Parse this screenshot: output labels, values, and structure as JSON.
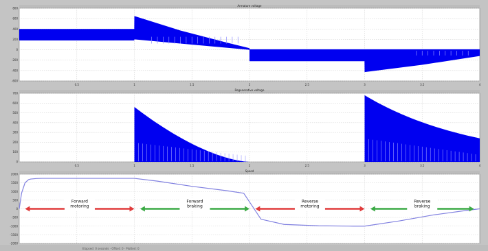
{
  "chart_data": [
    {
      "type": "line",
      "title": "Armature voltage",
      "xlim": [
        0,
        4
      ],
      "ylim": [
        -600,
        800
      ],
      "x_ticks": [
        "0.5",
        "1",
        "1.5",
        "2",
        "2.5",
        "3",
        "3.5",
        "4"
      ],
      "y_ticks": [
        "800",
        "600",
        "400",
        "200",
        "0",
        "-200",
        "-400",
        "-600"
      ],
      "series": [
        {
          "style": "pwm-envelope",
          "upper": [
            [
              0,
              400
            ],
            [
              0.999,
              400
            ],
            [
              1.0,
              650
            ],
            [
              1.4,
              370
            ],
            [
              1.8,
              140
            ],
            [
              2.0,
              30
            ]
          ],
          "lower": [
            [
              0,
              180
            ],
            [
              0.999,
              180
            ],
            [
              1.0,
              200
            ],
            [
              1.999,
              0
            ],
            [
              2.0,
              -10
            ],
            [
              2.999,
              -10
            ],
            [
              3.0,
              -200
            ],
            [
              3.5,
              -130
            ],
            [
              4.0,
              -50
            ]
          ],
          "upper2": [
            [
              2.0,
              10
            ],
            [
              3.999,
              10
            ],
            [
              4.0,
              10
            ]
          ],
          "lower2": [
            [
              2.0,
              -220
            ],
            [
              2.999,
              -220
            ],
            [
              3.0,
              -430
            ],
            [
              3.5,
              -290
            ],
            [
              4.0,
              -120
            ]
          ]
        }
      ]
    },
    {
      "type": "line",
      "title": "Regenerative voltage",
      "xlim": [
        0,
        4
      ],
      "ylim": [
        0,
        700
      ],
      "x_ticks": [
        "0.5",
        "1",
        "1.5",
        "2",
        "2.5",
        "3",
        "3.5",
        "4"
      ],
      "y_ticks": [
        "700",
        "600",
        "500",
        "400",
        "300",
        "200",
        "100",
        "0"
      ],
      "series": [
        {
          "style": "pwm-decay",
          "segments": [
            {
              "x0": 1.0,
              "x1": 2.0,
              "peak": 560
            },
            {
              "x0": 3.0,
              "x1": 4.0,
              "peak": 680,
              "end": 240
            }
          ]
        }
      ]
    },
    {
      "type": "line",
      "title": "Speed",
      "xlim": [
        0,
        4
      ],
      "ylim": [
        -2000,
        2000
      ],
      "y_ticks": [
        "2000",
        "1500",
        "1000",
        "500",
        "0",
        "-500",
        "-1000",
        "-1500",
        "-2000"
      ],
      "series": [
        {
          "color": "#8080e0",
          "x": [
            0,
            0.02,
            0.05,
            0.08,
            0.1,
            0.15,
            0.2,
            0.4,
            0.7,
            1.0,
            1.2,
            1.5,
            1.8,
            1.95,
            2.02,
            2.1,
            2.3,
            2.6,
            2.9,
            3.0,
            3.3,
            3.6,
            3.9,
            4.0
          ],
          "y": [
            0,
            900,
            1500,
            1680,
            1720,
            1750,
            1760,
            1760,
            1760,
            1760,
            1600,
            1300,
            1050,
            900,
            200,
            -600,
            -900,
            -980,
            -1000,
            -1000,
            -700,
            -350,
            -80,
            0
          ]
        }
      ],
      "annotations": [
        {
          "text": "Forward motoring",
          "x0": 0.05,
          "x1": 1.0,
          "y": 0,
          "color": "#e03c3c"
        },
        {
          "text": "Forward braking",
          "x0": 1.05,
          "x1": 2.0,
          "y": 0,
          "color": "#3caa46"
        },
        {
          "text": "Reverse motoring",
          "x0": 2.05,
          "x1": 3.0,
          "y": 0,
          "color": "#e03c3c"
        },
        {
          "text": "Reverse braking",
          "x0": 3.05,
          "x1": 3.95,
          "y": 0,
          "color": "#3caa46"
        }
      ]
    }
  ],
  "toolbar_text": "Elapsed: 0 seconds · Offset: 0 · Plotted: 0"
}
